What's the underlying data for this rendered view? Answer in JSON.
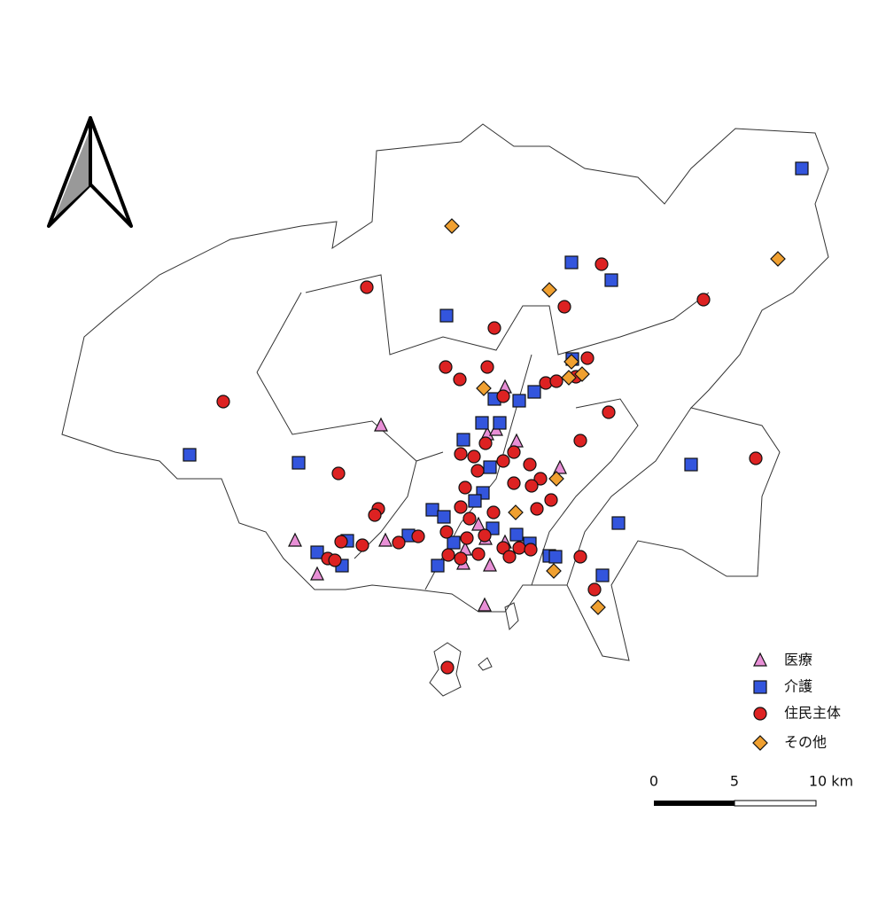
{
  "legend": {
    "items": [
      "医療",
      "介護",
      "住民主体",
      "その他"
    ]
  },
  "scale_bar": {
    "labels": [
      "0",
      "5",
      "10 km"
    ]
  }
}
